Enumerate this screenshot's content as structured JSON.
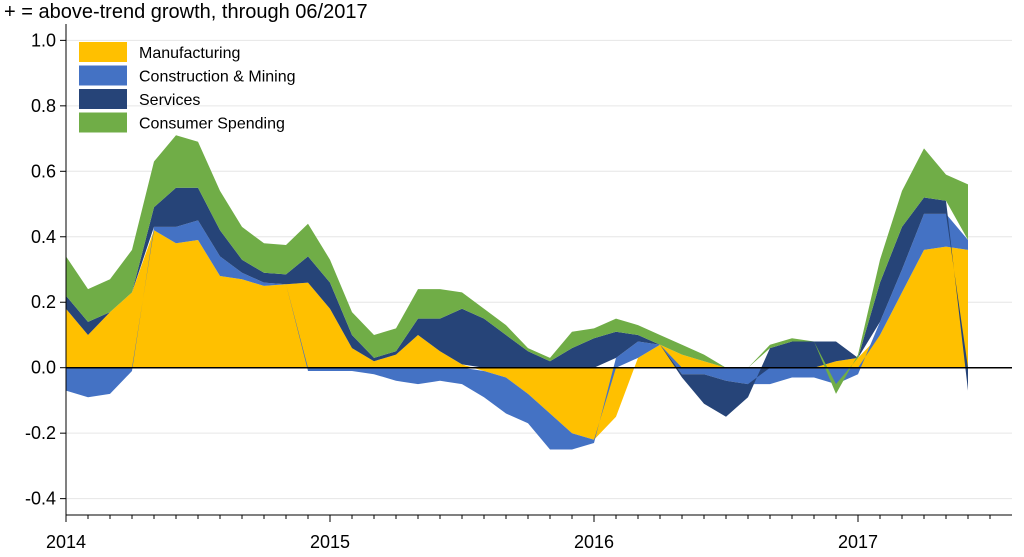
{
  "chart_data": {
    "type": "area",
    "title": "+ = above-trend growth, through 06/2017",
    "xlabel": "",
    "ylabel": "",
    "ylim": [
      -0.45,
      1.05
    ],
    "yticks": [
      -0.4,
      -0.2,
      0.0,
      0.2,
      0.4,
      0.6,
      0.8,
      1.0
    ],
    "ytick_labels": [
      "-0.4",
      "-0.2",
      "0.0",
      "0.2",
      "0.4",
      "0.6",
      "0.8",
      "1.0"
    ],
    "xlim": [
      2014.0,
      2017.5833
    ],
    "xticks": [
      2014,
      2015,
      2016,
      2017
    ],
    "xtick_labels": [
      "2014",
      "2015",
      "2016",
      "2017"
    ],
    "grid": true,
    "legend_position": "top-left",
    "x": [
      2014.0,
      2014.0833,
      2014.1667,
      2014.25,
      2014.3333,
      2014.4167,
      2014.5,
      2014.5833,
      2014.6667,
      2014.75,
      2014.8333,
      2014.9167,
      2015.0,
      2015.0833,
      2015.1667,
      2015.25,
      2015.3333,
      2015.4167,
      2015.5,
      2015.5833,
      2015.6667,
      2015.75,
      2015.8333,
      2015.9167,
      2016.0,
      2016.0833,
      2016.1667,
      2016.25,
      2016.3333,
      2016.4167,
      2016.5,
      2016.5833,
      2016.6667,
      2016.75,
      2016.8333,
      2016.9167,
      2017.0,
      2017.0833,
      2017.1667,
      2017.25,
      2017.3333,
      2017.4167
    ],
    "series": [
      {
        "name": "Manufacturing",
        "color": "#FFC000",
        "values": [
          0.18,
          0.1,
          0.17,
          0.23,
          0.42,
          0.38,
          0.39,
          0.28,
          0.27,
          0.25,
          0.255,
          0.26,
          0.18,
          0.06,
          0.02,
          0.04,
          0.1,
          0.05,
          0.01,
          -0.01,
          -0.03,
          -0.08,
          -0.14,
          -0.2,
          -0.22,
          -0.15,
          0.03,
          0.07,
          0.04,
          0.02,
          0.0,
          0.0,
          0.0,
          0.0,
          0.0,
          0.02,
          0.03,
          0.1,
          0.23,
          0.36,
          0.37,
          0.36
        ]
      },
      {
        "name": "Construction & Mining",
        "color": "#4472C4",
        "values": [
          -0.07,
          -0.09,
          -0.08,
          -0.01,
          0.01,
          0.05,
          0.06,
          0.06,
          0.02,
          0.01,
          0.0,
          -0.01,
          -0.01,
          -0.01,
          -0.02,
          -0.04,
          -0.05,
          -0.04,
          -0.05,
          -0.08,
          -0.11,
          -0.09,
          -0.11,
          -0.05,
          -0.01,
          0.03,
          0.05,
          0.0,
          -0.02,
          -0.02,
          -0.04,
          -0.05,
          -0.05,
          -0.03,
          -0.03,
          -0.05,
          -0.02,
          0.04,
          0.07,
          0.11,
          0.1,
          0.03
        ]
      },
      {
        "name": "Services",
        "color": "#264478",
        "values": [
          0.04,
          0.04,
          0.0,
          0.0,
          0.06,
          0.12,
          0.1,
          0.08,
          0.04,
          0.03,
          0.03,
          0.08,
          0.08,
          0.04,
          0.01,
          0.01,
          0.05,
          0.1,
          0.17,
          0.15,
          0.1,
          0.05,
          0.02,
          0.06,
          0.09,
          0.08,
          0.02,
          0.0,
          -0.01,
          -0.09,
          -0.11,
          -0.04,
          0.06,
          0.08,
          0.08,
          0.06,
          0.0,
          0.12,
          0.13,
          0.05,
          0.04,
          -0.07
        ]
      },
      {
        "name": "Consumer Spending",
        "color": "#70AD47",
        "values": [
          0.12,
          0.1,
          0.1,
          0.13,
          0.14,
          0.16,
          0.14,
          0.12,
          0.1,
          0.09,
          0.09,
          0.1,
          0.07,
          0.07,
          0.07,
          0.07,
          0.09,
          0.09,
          0.05,
          0.03,
          0.03,
          0.01,
          0.01,
          0.05,
          0.03,
          0.04,
          0.03,
          0.03,
          0.03,
          0.02,
          0.0,
          0.0,
          0.01,
          0.01,
          0.0,
          -0.03,
          0.01,
          0.07,
          0.11,
          0.15,
          0.08,
          0.17
        ]
      }
    ]
  }
}
